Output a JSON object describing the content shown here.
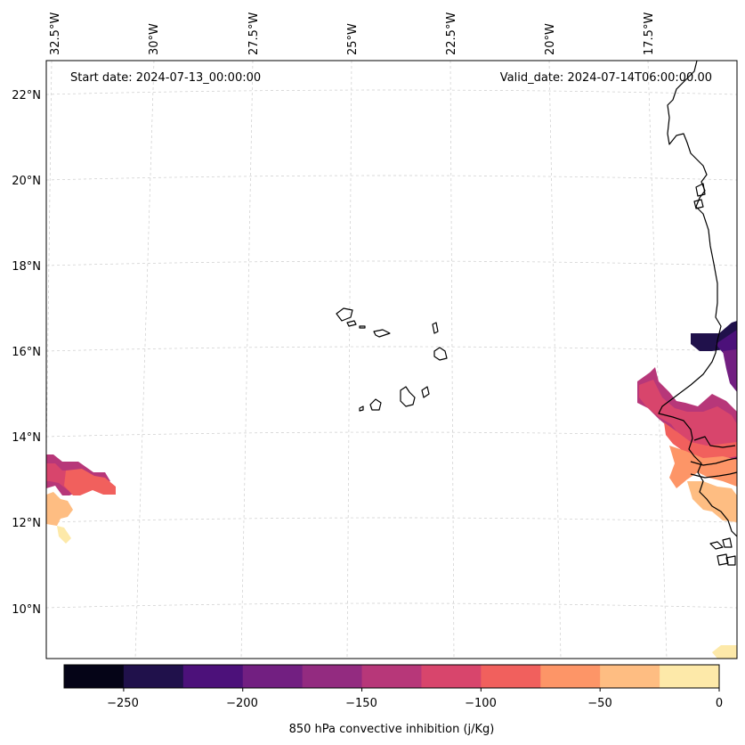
{
  "map": {
    "region": "Eastern tropical Atlantic: Cape Verde Islands and West African coast",
    "start_label": "Start date: 2024-07-13_00:00:00",
    "valid_label": "Valid_date: 2024-07-14T06:00:00.00",
    "lon_ticks": [
      "32.5°W",
      "30°W",
      "27.5°W",
      "25°W",
      "22.5°W",
      "20°W",
      "17.5°W"
    ],
    "lat_ticks": [
      "22°N",
      "20°N",
      "18°N",
      "16°N",
      "14°N",
      "12°N",
      "10°N"
    ]
  },
  "colorbar": {
    "title": "850 hPa convective inhibition (j/Kg)",
    "tick_labels": [
      "−250",
      "−200",
      "−150",
      "−100",
      "−50",
      "0"
    ],
    "levels": [
      -275,
      -250,
      -225,
      -200,
      -175,
      -150,
      -125,
      -100,
      -75,
      -50,
      -25,
      0
    ],
    "colors": [
      "#050417",
      "#20114b",
      "#4c117a",
      "#721f81",
      "#932b80",
      "#b73779",
      "#d8456c",
      "#f1605d",
      "#fd9567",
      "#febd82",
      "#fde9a9"
    ]
  },
  "colors": {
    "coastline": "#000000",
    "gridline": "#cccccc",
    "frame": "#000000"
  }
}
